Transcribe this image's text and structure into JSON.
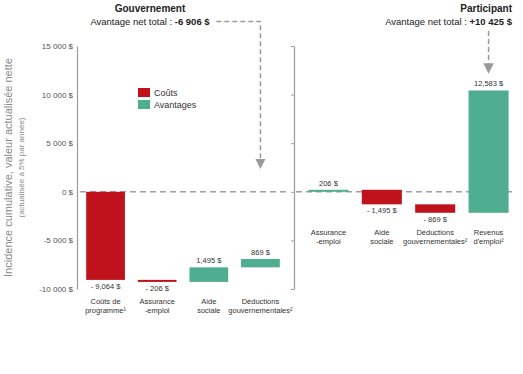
{
  "chart_data": [
    {
      "type": "waterfall",
      "title": "Gouvernement",
      "subtitle": "Avantage net total : -6 906 $",
      "ylabel": "Incidence cumulative, valeur actualisée nette",
      "annotations": [
        "(actualisée à 5% par année)"
      ],
      "categories": [
        "Coûts de programme¹",
        "Assurance-emploi",
        "Aide sociale",
        "Déductions gouvernementales²"
      ],
      "series": [
        {
          "name": "Coûts",
          "color": "#c0121c",
          "values": [
            -9064,
            -206,
            null,
            null
          ]
        },
        {
          "name": "Avantages",
          "color": "#4fae8f",
          "values": [
            null,
            null,
            1495,
            869
          ]
        }
      ],
      "value_labels": [
        "- 9,064 $",
        "- 206 $",
        "1,495 $",
        "869 $"
      ],
      "data_labels": true,
      "ylim": [
        -10000,
        15000
      ],
      "yticks": [
        {
          "value": -10000,
          "label": "-10 000 $"
        },
        {
          "value": -5000,
          "label": "-5 000 $"
        },
        {
          "value": 0,
          "label": "0 $"
        },
        {
          "value": 5000,
          "label": "5 000 $"
        },
        {
          "value": 10000,
          "label": "10 000 $"
        },
        {
          "value": 15000,
          "label": "15 000 $"
        }
      ],
      "legend": "upper center"
    },
    {
      "type": "waterfall",
      "title": "Participant",
      "subtitle": "Avantage net total : +10 425 $",
      "categories": [
        "Assurance-emploi",
        "Aide sociale",
        "Déductions gouvernementales²",
        "Revenus d'emploi²"
      ],
      "series": [
        {
          "color": "#c0121c",
          "values": [
            null,
            -1495,
            -869,
            null
          ]
        },
        {
          "color": "#4fae8f",
          "values": [
            206,
            null,
            null,
            12583
          ]
        }
      ],
      "value_labels": [
        "206 $",
        "- 1,495 $",
        "- 869 $",
        "12,583 $"
      ],
      "data_labels": true,
      "ylim": [
        -10000,
        15000
      ],
      "yticks": [
        -10000,
        -5000,
        0,
        5000,
        10000,
        15000
      ],
      "tick_labels": false
    }
  ]
}
